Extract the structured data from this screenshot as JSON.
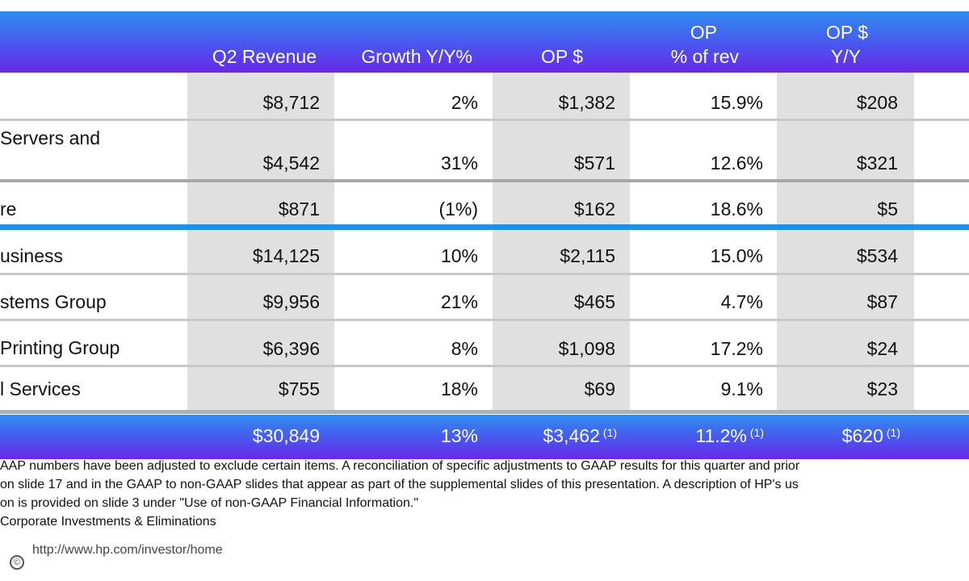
{
  "header": {
    "col1": "Q2 Revenue",
    "col2": "Growth Y/Y%",
    "col3": "OP $",
    "col4_line1": "OP",
    "col4_line2": "% of rev",
    "col5_line1": "OP $",
    "col5_line2": "Y/Y"
  },
  "rows": [
    {
      "label": "",
      "label2": "",
      "revenue": "$8,712",
      "growth": "2%",
      "op": "$1,382",
      "op_pct": "15.9%",
      "op_yy": "$208"
    },
    {
      "label": "Servers and",
      "label2": "",
      "revenue": "$4,542",
      "growth": "31%",
      "op": "$571",
      "op_pct": "12.6%",
      "op_yy": "$321"
    },
    {
      "label": "re",
      "label2": "",
      "revenue": "$871",
      "growth": "(1%)",
      "op": "$162",
      "op_pct": "18.6%",
      "op_yy": "$5"
    },
    {
      "label": "usiness",
      "label2": "",
      "revenue": "$14,125",
      "growth": "10%",
      "op": "$2,115",
      "op_pct": "15.0%",
      "op_yy": "$534"
    },
    {
      "label": "stems Group",
      "label2": "",
      "revenue": "$9,956",
      "growth": "21%",
      "op": "$465",
      "op_pct": "4.7%",
      "op_yy": "$87"
    },
    {
      "label": " Printing Group",
      "label2": "",
      "revenue": "$6,396",
      "growth": "8%",
      "op": "$1,098",
      "op_pct": "17.2%",
      "op_yy": "$24"
    },
    {
      "label": "l Services",
      "label2": "",
      "revenue": "$755",
      "growth": "18%",
      "op": "$69",
      "op_pct": "9.1%",
      "op_yy": "$23"
    }
  ],
  "total": {
    "revenue": "$30,849",
    "growth": "13%",
    "op": "$3,462",
    "op_note": "(1)",
    "op_pct": "11.2%",
    "op_pct_note": "(1)",
    "op_yy": "$620",
    "op_yy_note": "(1)"
  },
  "notes": {
    "line1": "AAP numbers have been adjusted to exclude certain items. A reconciliation of specific adjustments to GAAP results for this quarter and prior",
    "line2": "on slide 17 and in the GAAP to non-GAAP slides that appear as part of the supplemental slides of this presentation. A description of HP's us",
    "line3": "on is provided on slide 3 under \"Use of non-GAAP Financial Information.\"",
    "line4": "Corporate Investments & Eliminations"
  },
  "footer": {
    "url": "http://www.hp.com/investor/home",
    "logo_glyph": "©"
  },
  "colors": {
    "band_top": "#2f8ef0",
    "band_bottom": "#6a28e6",
    "separator_blue": "#1f8fe9",
    "shade_gray": "#e0e0e0"
  }
}
